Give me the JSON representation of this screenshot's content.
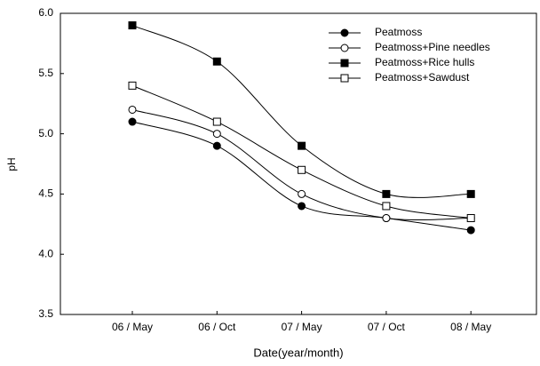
{
  "chart_data": {
    "type": "line",
    "x_label": "Date(year/month)",
    "y_label": "pH",
    "categories": [
      "06 / May",
      "06 / Oct",
      "07 / May",
      "07 / Oct",
      "08 / May"
    ],
    "ylim": [
      3.5,
      6.0
    ],
    "yticks": [
      3.5,
      {
        "value": 4.0,
        "label": "4.0"
      },
      4.5,
      {
        "value": 5.0,
        "label": "5.0"
      },
      5.5,
      {
        "value": 6.0,
        "label": "6.0"
      }
    ],
    "smooth": true,
    "legend": "upper right",
    "series": [
      {
        "name": "Peatmoss",
        "color": "#000000",
        "marker": "circle",
        "filled": true,
        "values": [
          5.1,
          4.9,
          4.4,
          4.3,
          4.2
        ]
      },
      {
        "name": "Peatmoss+Pine needles",
        "color": "#000000",
        "marker": "circle",
        "filled": false,
        "values": [
          5.2,
          5.0,
          4.5,
          4.3,
          4.3
        ]
      },
      {
        "name": "Peatmoss+Rice hulls",
        "color": "#000000",
        "marker": "square",
        "filled": true,
        "values": [
          5.9,
          5.6,
          4.9,
          4.5,
          4.5
        ]
      },
      {
        "name": "Peatmoss+Sawdust",
        "color": "#000000",
        "marker": "square",
        "filled": false,
        "values": [
          5.4,
          5.1,
          4.7,
          4.4,
          4.3
        ]
      }
    ]
  }
}
